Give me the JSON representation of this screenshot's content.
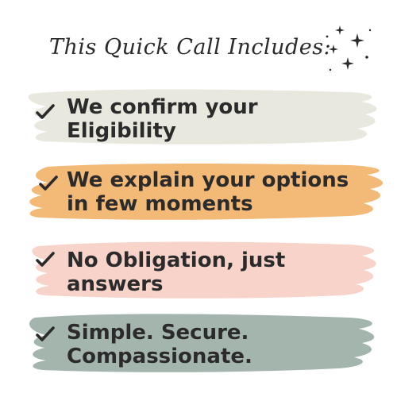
{
  "title": "This Quick Call Includes:",
  "icons": {
    "check": "check-icon",
    "sparkle": "sparkle-icon"
  },
  "colors": {
    "background": "#ffffff",
    "text": "#2b2b2b",
    "stroke_1": "#e9e8de",
    "stroke_2": "#f3b977",
    "stroke_3": "#f8d3ca",
    "stroke_4": "#a4b5ae"
  },
  "items": [
    {
      "line1": "We confirm your",
      "line2": "Eligibility"
    },
    {
      "line1": "We explain your options",
      "line2": "in few moments"
    },
    {
      "line1": "No Obligation, just",
      "line2": "answers"
    },
    {
      "line1": "Simple. Secure.",
      "line2": "Compassionate."
    }
  ]
}
